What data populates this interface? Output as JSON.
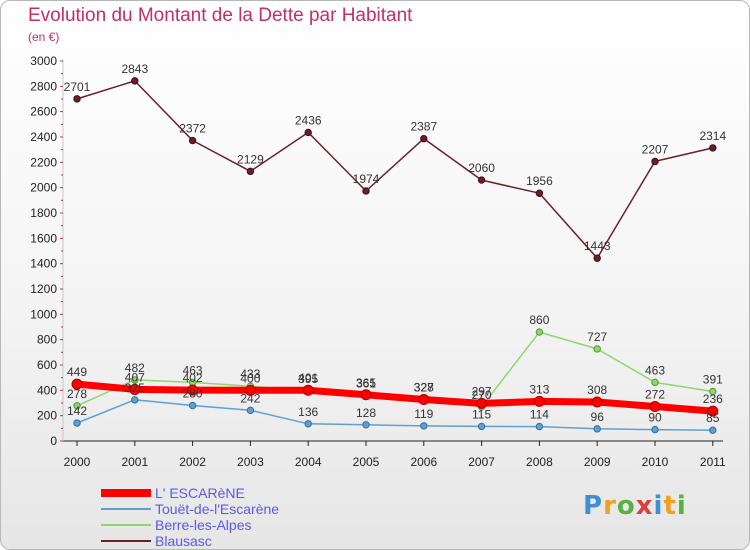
{
  "title": "Evolution du Montant de la Dette par Habitant",
  "subtitle": "(en €)",
  "chart_data": {
    "type": "line",
    "x": [
      "2000",
      "2001",
      "2002",
      "2003",
      "2004",
      "2005",
      "2006",
      "2007",
      "2008",
      "2009",
      "2010",
      "2011"
    ],
    "ylim": [
      0,
      3000
    ],
    "yticks": [
      0,
      200,
      400,
      600,
      800,
      1000,
      1200,
      1400,
      1600,
      1800,
      2000,
      2200,
      2400,
      2600,
      2800,
      3000
    ],
    "grid": false,
    "legend_position": "bottom-left",
    "series": [
      {
        "name": "Blausasc",
        "color": "#6b1f2a",
        "values": [
          2701,
          2843,
          2372,
          2129,
          2436,
          1974,
          2387,
          2060,
          1956,
          1443,
          2207,
          2314
        ]
      },
      {
        "name": "Berre-les-Alpes",
        "color": "#8fd66b",
        "values": [
          278,
          482,
          463,
          433,
          395,
          361,
          327,
          270,
          860,
          727,
          463,
          391
        ]
      },
      {
        "name": "Touët-de-l'Escarène",
        "color": "#5f9fd2",
        "values": [
          142,
          325,
          280,
          242,
          136,
          128,
          119,
          115,
          114,
          96,
          90,
          85
        ]
      },
      {
        "name": "L' ESCARèNE",
        "color": "#ff0000",
        "values": [
          449,
          407,
          402,
          400,
          401,
          365,
          328,
          297,
          313,
          308,
          272,
          236
        ]
      }
    ]
  },
  "legend": [
    {
      "label": "L' ESCARèNE",
      "color": "#ff0000"
    },
    {
      "label": "Touët-de-l'Escarène",
      "color": "#5f9fd2"
    },
    {
      "label": "Berre-les-Alpes",
      "color": "#8fd66b"
    },
    {
      "label": "Blausasc",
      "color": "#6b1f2a"
    }
  ],
  "logo": {
    "p": "P",
    "r": "r",
    "o": "o",
    "x": "x",
    "i": "i",
    "t": "t",
    "i2": "i"
  }
}
